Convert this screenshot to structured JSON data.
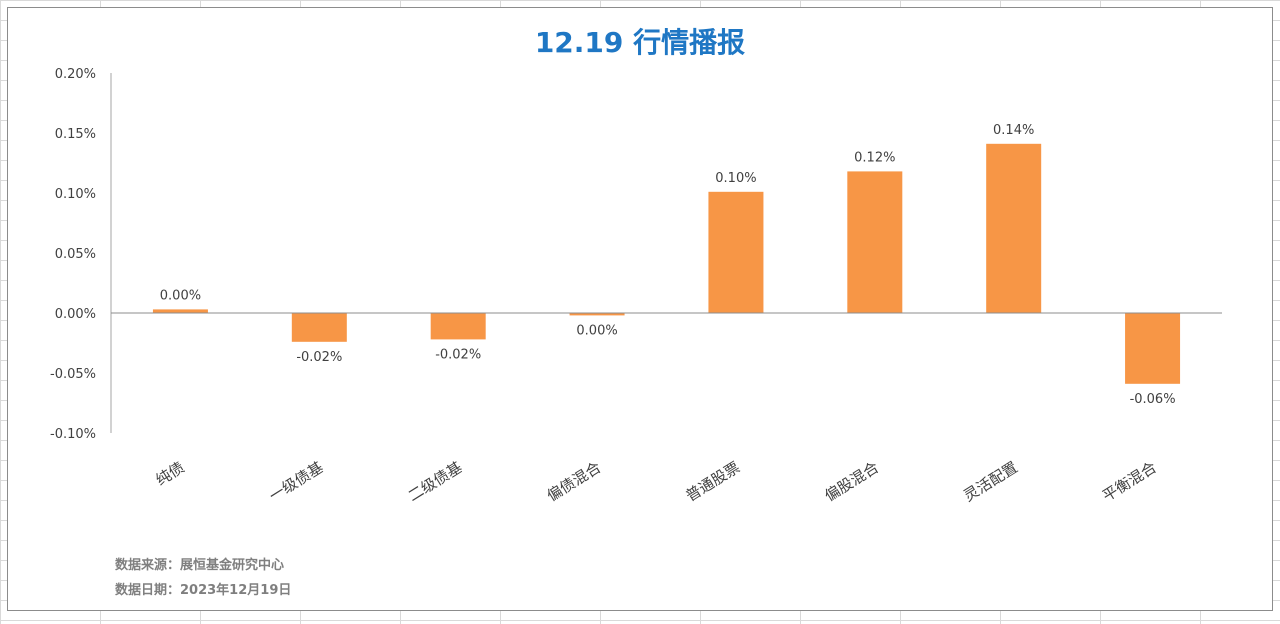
{
  "chart_data": {
    "type": "bar",
    "title": "12.19 行情播报",
    "categories": [
      "纯债",
      "一级债基",
      "二级债基",
      "偏债混合",
      "普通股票",
      "偏股混合",
      "灵活配置",
      "平衡混合"
    ],
    "values": [
      0.003,
      -0.024,
      -0.022,
      -0.002,
      0.101,
      0.118,
      0.141,
      -0.059
    ],
    "data_labels": [
      "0.00%",
      "-0.02%",
      "-0.02%",
      "0.00%",
      "0.10%",
      "0.12%",
      "0.14%",
      "-0.06%"
    ],
    "ylim": [
      -0.1,
      0.2
    ],
    "yticks": [
      0.2,
      0.15,
      0.1,
      0.05,
      0.0,
      -0.05,
      -0.1
    ],
    "ytick_labels": [
      "0.20%",
      "0.15%",
      "0.10%",
      "0.05%",
      "0.00%",
      "-0.05%",
      "-0.10%"
    ],
    "xlabel": "",
    "ylabel": "",
    "bar_color": "#f79646",
    "title_color": "#1f77c4",
    "grid": false,
    "legend": "none"
  },
  "notes": {
    "source": "数据来源：展恒基金研究中心",
    "date": "数据日期：2023年12月19日"
  }
}
